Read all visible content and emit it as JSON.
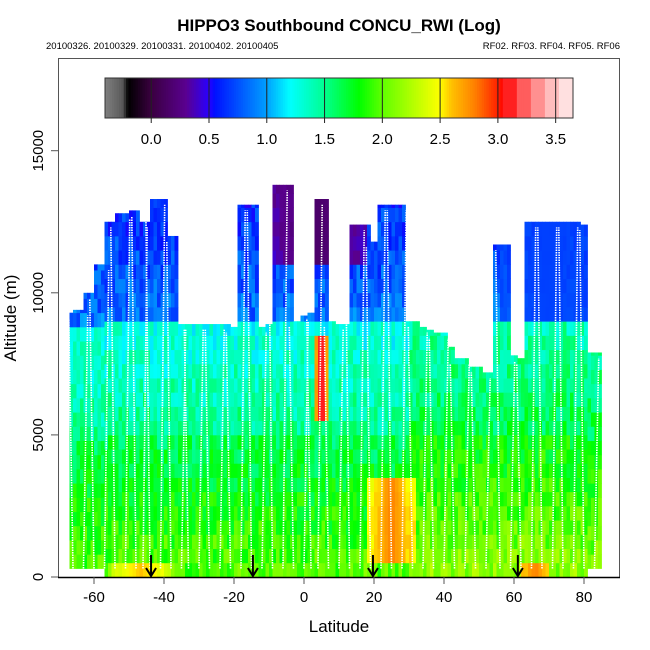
{
  "chart_data": {
    "type": "heatmap",
    "title": "HIPPO3 Southbound CONCU_RWI (Log)",
    "subtitle_left": "20100326. 20100329. 20100331. 20100402. 20100405",
    "subtitle_right": "RF02. RF03. RF04. RF05. RF06",
    "xlabel": "Latitude",
    "ylabel": "Altitude (m)",
    "xlim": [
      -70,
      90
    ],
    "ylim": [
      0,
      18200
    ],
    "x_ticks": [
      -60,
      -40,
      -20,
      0,
      20,
      40,
      60,
      80
    ],
    "x_tick_labels": [
      "-60",
      "-40",
      "-20",
      "0",
      "20",
      "40",
      "60",
      "80"
    ],
    "y_ticks": [
      0,
      5000,
      10000,
      15000
    ],
    "y_tick_labels": [
      "0",
      "5000",
      "10000",
      "15000"
    ],
    "grid": false,
    "colorbar": {
      "range": [
        -0.4,
        3.65
      ],
      "ticks": [
        0.0,
        0.5,
        1.0,
        1.5,
        2.0,
        2.5,
        3.0,
        3.5
      ],
      "tick_labels": [
        "0.0",
        "0.5",
        "1.0",
        "1.5",
        "2.0",
        "2.5",
        "3.0",
        "3.5"
      ],
      "placement": "top",
      "stops": [
        {
          "v": -0.4,
          "color": "#808080"
        },
        {
          "v": -0.25,
          "color": "#5a5a5a"
        },
        {
          "v": -0.2,
          "color": "#000000"
        },
        {
          "v": 0.0,
          "color": "#3a0040"
        },
        {
          "v": 0.3,
          "color": "#5a0090"
        },
        {
          "v": 0.5,
          "color": "#2a00ff"
        },
        {
          "v": 0.55,
          "color": "#0010ff"
        },
        {
          "v": 1.0,
          "color": "#00a0ff"
        },
        {
          "v": 1.2,
          "color": "#00ffff"
        },
        {
          "v": 1.5,
          "color": "#00ff90"
        },
        {
          "v": 1.8,
          "color": "#00ff00"
        },
        {
          "v": 2.0,
          "color": "#60ff00"
        },
        {
          "v": 2.5,
          "color": "#ffff00"
        },
        {
          "v": 2.6,
          "color": "#ffc000"
        },
        {
          "v": 2.8,
          "color": "#ff8000"
        },
        {
          "v": 3.0,
          "color": "#ff2000"
        },
        {
          "v": 3.05,
          "color": "#ff0000"
        },
        {
          "v": 3.2,
          "color": "#ff5050"
        },
        {
          "v": 3.35,
          "color": "#ff9090"
        },
        {
          "v": 3.5,
          "color": "#ffc8c8"
        },
        {
          "v": 3.65,
          "color": "#fff0f0"
        }
      ]
    },
    "lat_bin_deg": 2,
    "alt_bin_m": 500,
    "envelope": {
      "lat": [
        -67,
        -64,
        -61,
        -58,
        -55,
        -52,
        -48,
        -45,
        -43,
        -40,
        -37,
        -34,
        -31,
        -28,
        -25,
        -22,
        -20,
        -17,
        -14,
        -12,
        -10,
        -8,
        -6,
        -4,
        -2,
        0,
        2,
        4,
        6,
        8,
        10,
        12,
        14,
        16,
        18,
        20,
        22,
        24,
        26,
        28,
        30,
        32,
        34,
        36,
        38,
        40,
        42,
        44,
        46,
        48,
        50,
        52,
        54,
        55,
        57,
        58,
        60,
        62,
        64,
        66,
        68,
        70,
        72,
        74,
        76,
        78,
        80,
        82,
        84,
        85
      ],
      "top_m": [
        9300,
        9400,
        10000,
        11000,
        12500,
        12800,
        12900,
        12500,
        13300,
        13300,
        12000,
        8900,
        8900,
        8900,
        8900,
        8900,
        8800,
        13100,
        13100,
        8800,
        8900,
        13800,
        13800,
        13800,
        9000,
        9200,
        9300,
        13300,
        13300,
        9000,
        8900,
        8900,
        12400,
        12400,
        12400,
        11800,
        13100,
        13100,
        13100,
        13100,
        9000,
        9000,
        8800,
        8700,
        8600,
        8600,
        8100,
        7700,
        7700,
        7400,
        7400,
        7200,
        7200,
        11700,
        11700,
        11700,
        7800,
        7700,
        12500,
        12500,
        12500,
        12500,
        12500,
        12500,
        12500,
        12500,
        12400,
        7900,
        7900,
        7900
      ],
      "bottom_m": [
        300,
        300,
        300,
        300,
        0,
        0,
        0,
        0,
        0,
        0,
        0,
        0,
        0,
        0,
        0,
        0,
        0,
        0,
        0,
        0,
        0,
        0,
        0,
        0,
        0,
        0,
        0,
        0,
        0,
        0,
        0,
        0,
        0,
        0,
        0,
        0,
        0,
        0,
        0,
        0,
        0,
        0,
        0,
        0,
        0,
        0,
        0,
        0,
        0,
        0,
        0,
        0,
        0,
        0,
        0,
        0,
        0,
        0,
        0,
        0,
        0,
        0,
        0,
        0,
        0,
        0,
        0,
        300,
        300,
        300
      ]
    },
    "features": [
      {
        "name": "upper-troposphere-blue",
        "lat": [
          -67,
          85
        ],
        "alt_m": [
          9000,
          14000
        ],
        "value": 0.8
      },
      {
        "name": "mid-troposphere-cyan",
        "lat": [
          -67,
          85
        ],
        "alt_m": [
          5000,
          9000
        ],
        "value": 1.3
      },
      {
        "name": "lower-troposphere-green",
        "lat": [
          -67,
          85
        ],
        "alt_m": [
          0,
          5000
        ],
        "value": 1.85
      },
      {
        "name": "tropical-tropopause-purple",
        "lat": [
          -10,
          18
        ],
        "alt_m": [
          11000,
          13900
        ],
        "value": 0.15
      },
      {
        "name": "convective-plume-red",
        "lat": [
          3,
          7
        ],
        "alt_m": [
          5500,
          8500
        ],
        "value": 3.3
      },
      {
        "name": "northern-subtropics-orange",
        "lat": [
          18,
          32
        ],
        "alt_m": [
          500,
          3500
        ],
        "value": 2.8
      },
      {
        "name": "surface-layer-orange-south",
        "lat": [
          -55,
          -38
        ],
        "alt_m": [
          0,
          600
        ],
        "value": 2.6
      },
      {
        "name": "surface-layer-orange-north",
        "lat": [
          62,
          70
        ],
        "alt_m": [
          0,
          600
        ],
        "value": 2.8
      },
      {
        "name": "arctic-blue-core",
        "lat": [
          56,
          84
        ],
        "alt_m": [
          9000,
          12500
        ],
        "value": 0.7
      }
    ],
    "profile_lines_lat": [
      -66,
      -63,
      -60,
      -57,
      -54,
      -51,
      -48,
      -46,
      -44,
      -41,
      -38,
      -35,
      -33,
      -30,
      -27,
      -24,
      -21,
      -18,
      -15,
      -12,
      -9,
      -6,
      -3,
      0,
      2,
      4,
      7,
      10,
      13,
      16,
      19,
      22,
      25,
      28,
      31,
      34,
      37,
      40,
      43,
      46,
      49,
      52,
      56,
      59,
      62,
      65,
      68,
      71,
      74,
      77,
      80,
      83
    ],
    "arrows_lat": [
      -43.7,
      -14.6,
      19.7,
      61.1
    ]
  }
}
